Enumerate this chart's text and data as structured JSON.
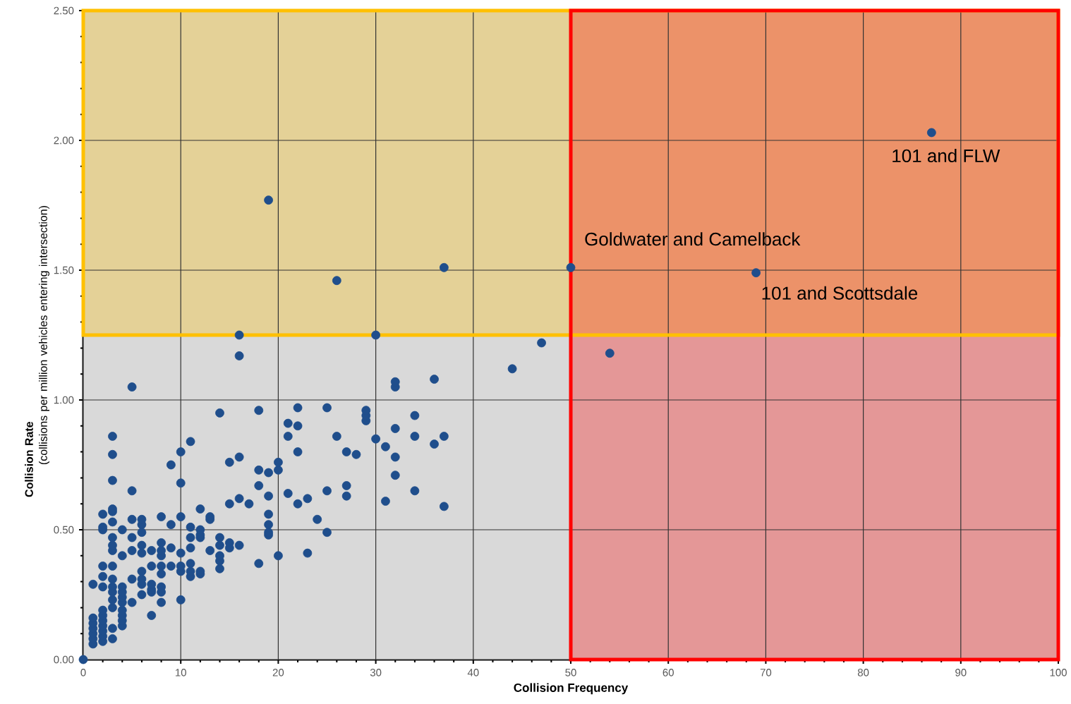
{
  "chart_data": {
    "type": "scatter",
    "xlabel": "Collision Frequency",
    "ylabel": "**Collision Rate** (collisions per million vehicles entering intersection)",
    "xlim": [
      0,
      100
    ],
    "ylim": [
      0,
      2.5
    ],
    "xticks": [
      0,
      10,
      20,
      30,
      40,
      50,
      60,
      70,
      80,
      90,
      100
    ],
    "yticks": [
      {
        "value": 0,
        "label": "0.00"
      },
      {
        "value": 0.5,
        "label": "0.50"
      },
      {
        "value": 1,
        "label": "1.00"
      },
      {
        "value": 1.5,
        "label": "1.50"
      },
      {
        "value": 2,
        "label": "2.00"
      },
      {
        "value": 2.5,
        "label": "2.50"
      }
    ],
    "grid": true,
    "bands": [
      {
        "axis": "y",
        "from": 1.25,
        "to": 2.5,
        "color": "#ffc000"
      },
      {
        "axis": "x",
        "from": 50,
        "to": 100,
        "color": "#ff0000"
      }
    ],
    "annotations": [
      {
        "text": "101 and FLW",
        "x": 87,
        "y": 2.03
      },
      {
        "text": "Goldwater and Camelback",
        "x": 50,
        "y": 1.51
      },
      {
        "text": "101 and Scottsdale",
        "x": 69,
        "y": 1.49
      }
    ],
    "series": [
      {
        "color": "#1f4e8c",
        "x": [
          0,
          1,
          1,
          1,
          1,
          1,
          1,
          1,
          2,
          2,
          2,
          2,
          2,
          2,
          2,
          2,
          2,
          2,
          2,
          2,
          2,
          3,
          3,
          3,
          3,
          3,
          3,
          3,
          3,
          3,
          3,
          3,
          3,
          3,
          3,
          3,
          3,
          3,
          4,
          4,
          4,
          4,
          4,
          4,
          4,
          4,
          4,
          4,
          5,
          5,
          5,
          5,
          5,
          5,
          5,
          6,
          6,
          6,
          6,
          6,
          6,
          6,
          6,
          6,
          7,
          7,
          7,
          7,
          7,
          7,
          8,
          8,
          8,
          8,
          8,
          8,
          8,
          8,
          8,
          9,
          9,
          9,
          9,
          10,
          10,
          10,
          10,
          10,
          10,
          10,
          11,
          11,
          11,
          11,
          11,
          11,
          11,
          12,
          12,
          12,
          12,
          12,
          12,
          13,
          13,
          13,
          14,
          14,
          14,
          14,
          14,
          14,
          15,
          15,
          15,
          15,
          16,
          16,
          16,
          16,
          16,
          17,
          18,
          18,
          18,
          18,
          19,
          19,
          19,
          19,
          19,
          19,
          19,
          20,
          20,
          20,
          21,
          21,
          21,
          22,
          22,
          22,
          22,
          23,
          23,
          24,
          25,
          25,
          25,
          26,
          26,
          27,
          27,
          27,
          28,
          29,
          29,
          29,
          30,
          30,
          31,
          31,
          32,
          32,
          32,
          32,
          32,
          34,
          34,
          34,
          36,
          36,
          37,
          37,
          37,
          44,
          47,
          50,
          54,
          69,
          87
        ],
        "values": [
          0,
          0.06,
          0.08,
          0.1,
          0.12,
          0.14,
          0.16,
          0.29,
          0.07,
          0.09,
          0.11,
          0.13,
          0.15,
          0.17,
          0.19,
          0.28,
          0.32,
          0.36,
          0.5,
          0.51,
          0.56,
          0.08,
          0.12,
          0.2,
          0.23,
          0.26,
          0.28,
          0.31,
          0.36,
          0.42,
          0.44,
          0.47,
          0.53,
          0.57,
          0.69,
          0.79,
          0.86,
          0.58,
          0.13,
          0.15,
          0.17,
          0.19,
          0.22,
          0.24,
          0.26,
          0.28,
          0.4,
          0.5,
          0.22,
          0.31,
          0.42,
          0.47,
          0.54,
          0.65,
          1.05,
          0.25,
          0.29,
          0.31,
          0.34,
          0.41,
          0.44,
          0.49,
          0.52,
          0.54,
          0.17,
          0.26,
          0.27,
          0.29,
          0.36,
          0.42,
          0.22,
          0.26,
          0.28,
          0.33,
          0.36,
          0.4,
          0.42,
          0.45,
          0.55,
          0.36,
          0.43,
          0.52,
          0.75,
          0.23,
          0.34,
          0.36,
          0.41,
          0.55,
          0.68,
          0.8,
          0.32,
          0.34,
          0.37,
          0.43,
          0.47,
          0.51,
          0.84,
          0.33,
          0.34,
          0.47,
          0.48,
          0.5,
          0.58,
          0.42,
          0.54,
          0.55,
          0.35,
          0.38,
          0.4,
          0.44,
          0.47,
          0.95,
          0.43,
          0.45,
          0.6,
          0.76,
          0.44,
          0.62,
          0.78,
          1.17,
          1.25,
          0.6,
          0.37,
          0.67,
          0.73,
          0.96,
          0.48,
          0.49,
          0.52,
          0.56,
          0.63,
          0.72,
          1.77,
          0.4,
          0.73,
          0.76,
          0.64,
          0.86,
          0.91,
          0.6,
          0.8,
          0.9,
          0.97,
          0.41,
          0.62,
          0.54,
          0.49,
          0.65,
          0.97,
          0.86,
          1.46,
          0.63,
          0.67,
          0.8,
          0.79,
          0.92,
          0.94,
          0.96,
          0.85,
          1.25,
          0.61,
          0.82,
          0.71,
          0.78,
          0.89,
          1.05,
          1.07,
          0.65,
          0.86,
          0.94,
          0.83,
          1.08,
          0.59,
          0.86,
          1.51,
          1.12,
          1.22,
          1.51,
          1.18,
          1.49,
          2.03
        ]
      }
    ]
  }
}
